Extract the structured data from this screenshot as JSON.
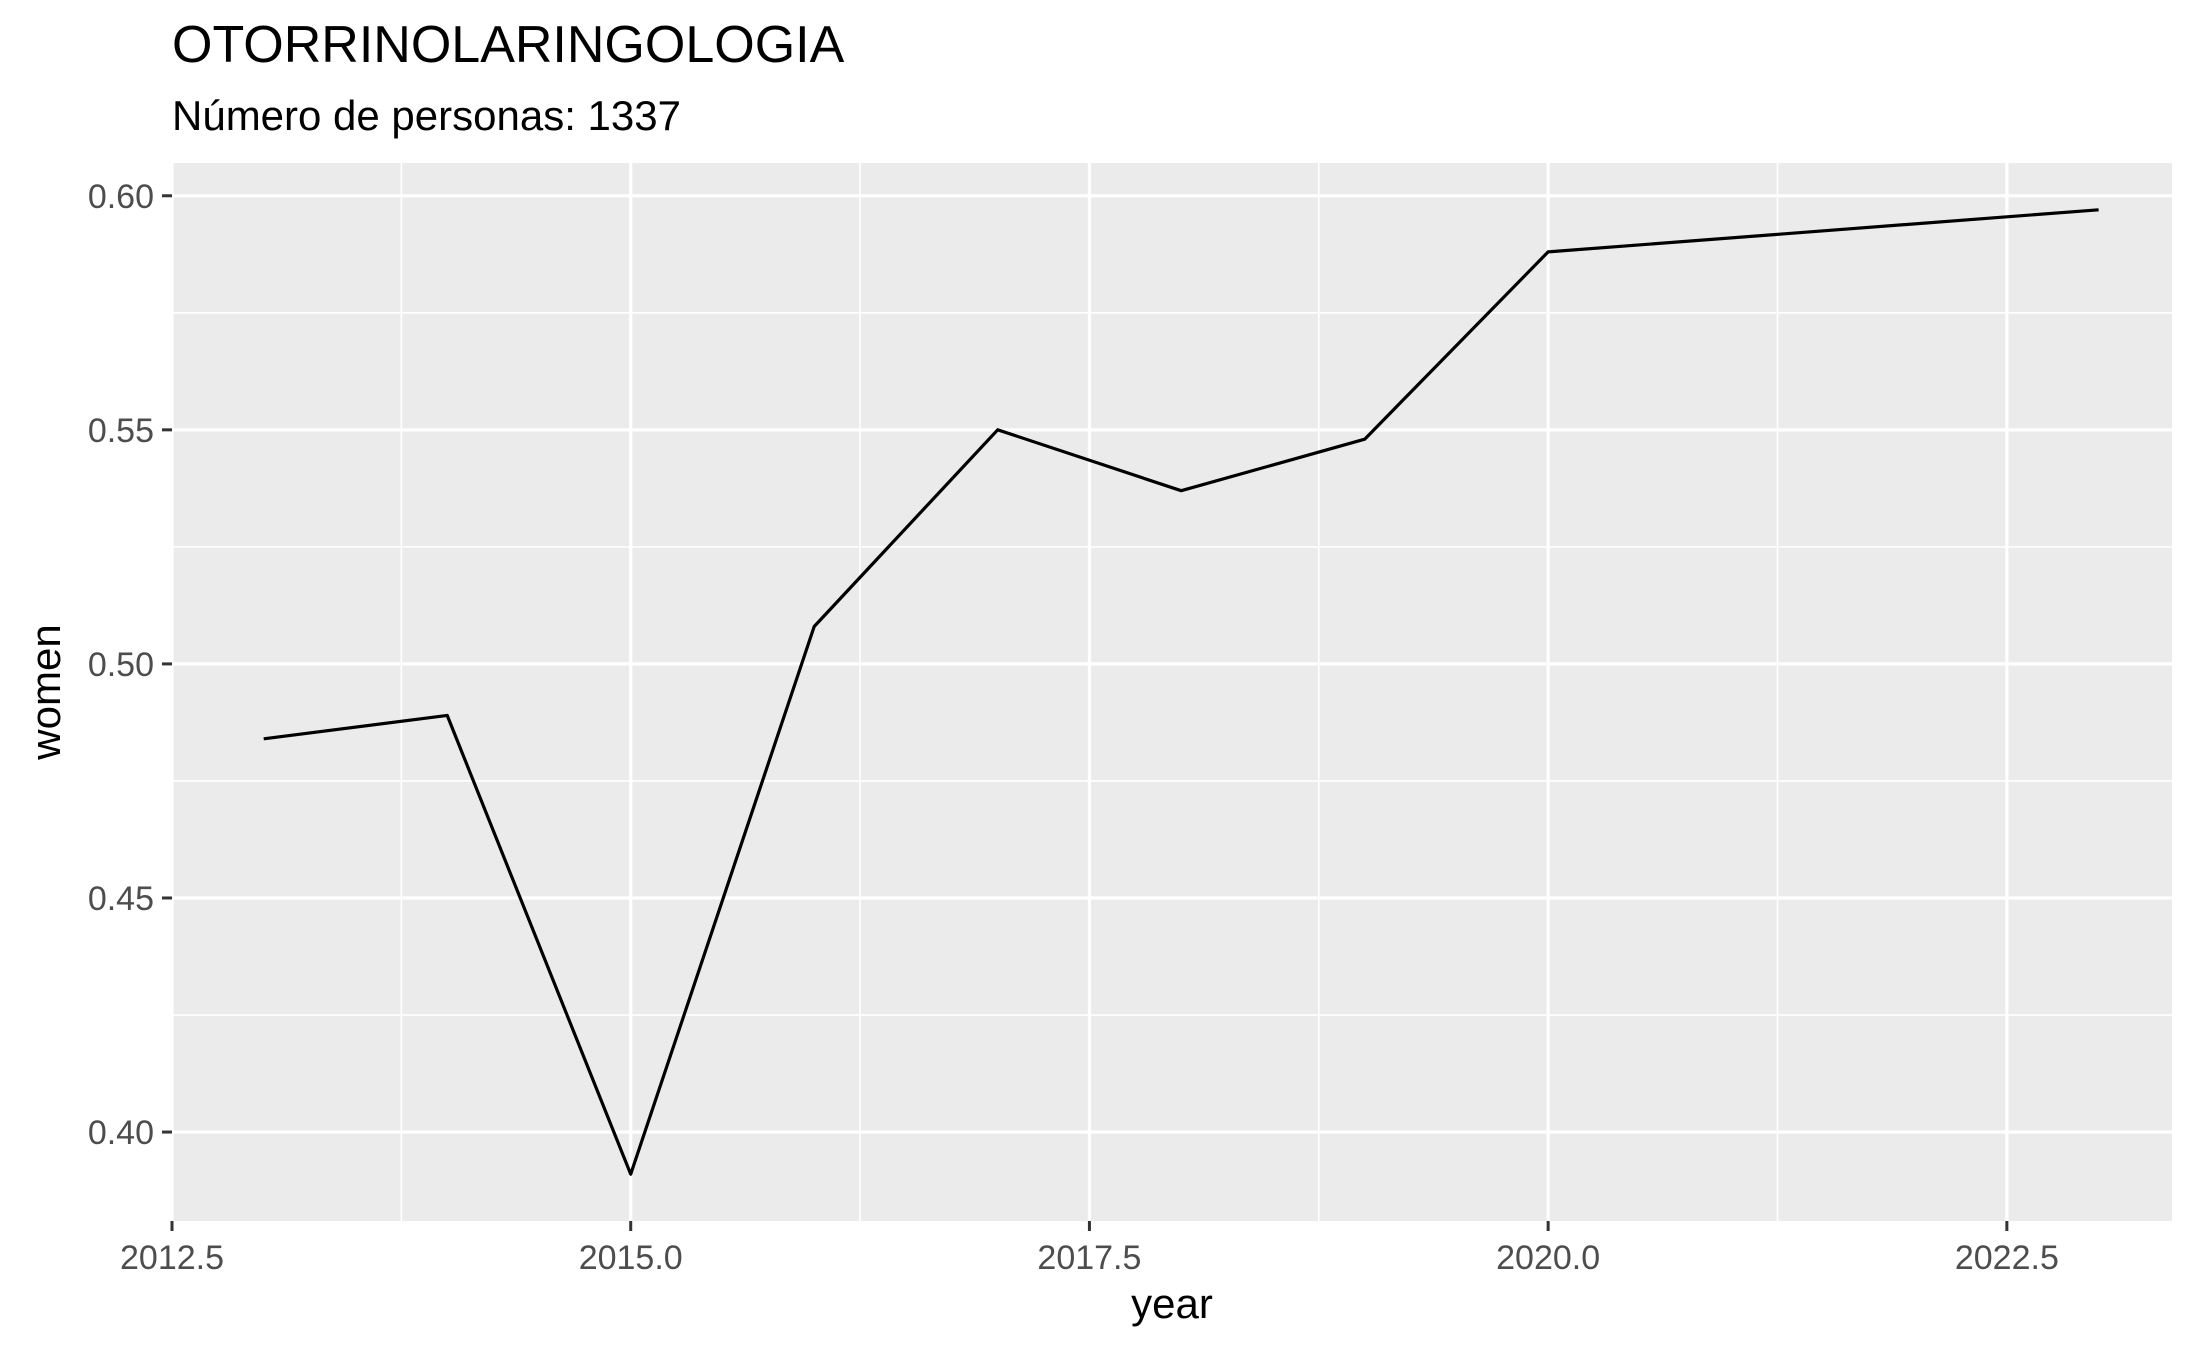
{
  "chart_data": {
    "type": "line",
    "title": "OTORRINOLARINGOLOGIA",
    "subtitle": "Número de personas: 1337",
    "xlabel": "year",
    "ylabel": "women",
    "xlim": [
      2012.5,
      2023.4
    ],
    "ylim": [
      0.381,
      0.607
    ],
    "x_ticks": [
      2012.5,
      2015.0,
      2017.5,
      2020.0,
      2022.5
    ],
    "x_tick_labels": [
      "2012.5",
      "2015.0",
      "2017.5",
      "2020.0",
      "2022.5"
    ],
    "y_ticks": [
      0.4,
      0.45,
      0.5,
      0.55,
      0.6
    ],
    "y_tick_labels": [
      "0.40",
      "0.45",
      "0.50",
      "0.55",
      "0.60"
    ],
    "grid": true,
    "colors": {
      "panel": "#ebebeb",
      "grid": "#ffffff",
      "line": "#000000",
      "tick_text": "#4d4d4d"
    },
    "series": [
      {
        "x": [
          2013,
          2014,
          2015,
          2016,
          2017,
          2018,
          2019,
          2020,
          2023
        ],
        "y": [
          0.484,
          0.489,
          0.391,
          0.508,
          0.55,
          0.537,
          0.548,
          0.588,
          0.597
        ]
      }
    ]
  }
}
